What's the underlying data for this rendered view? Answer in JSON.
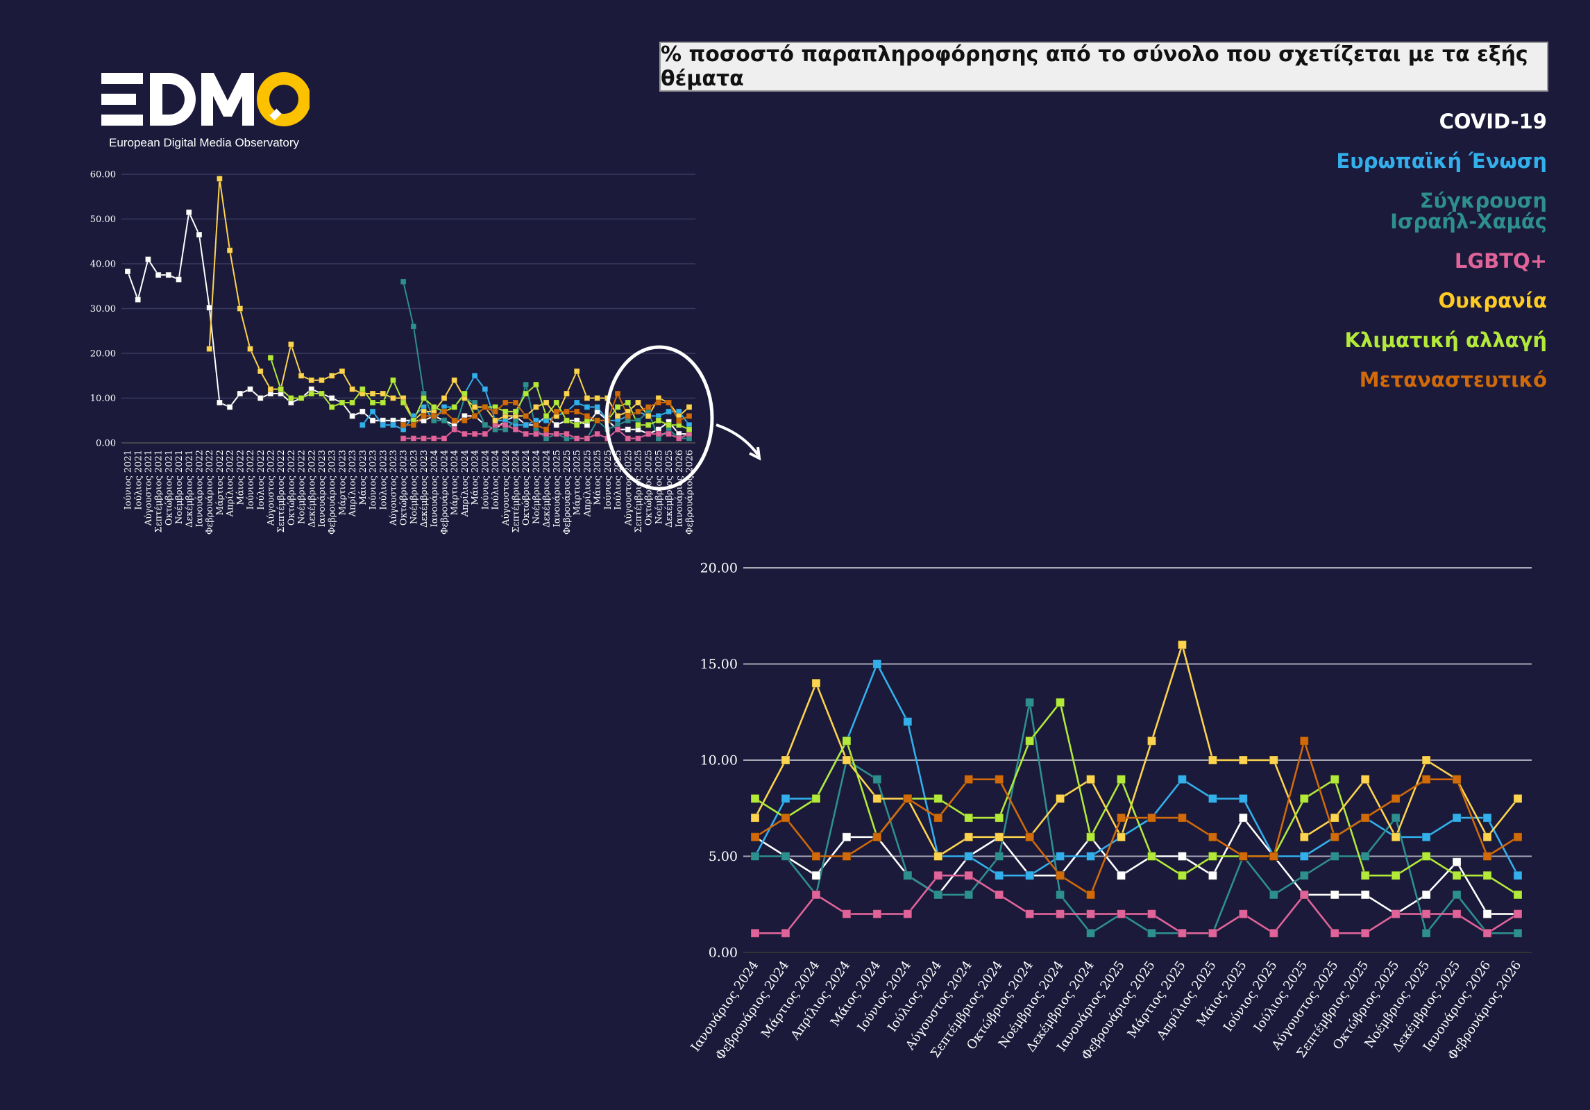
{
  "title": "% ποσοστό παραπληροφόρησης από το σύνολο που σχετίζεται με τα εξής θέματα",
  "logo": {
    "text": "EDMO",
    "subtitle": "European Digital Media Observatory"
  },
  "legend": [
    {
      "label": "COVID-19",
      "color": "#ffffff"
    },
    {
      "label": "Ευρωπαϊκή Ένωση",
      "color": "#33b0ec"
    },
    {
      "label": "Σύγκρουση Ισραήλ-Χαμάς",
      "color": "#2e8f8f"
    },
    {
      "label": "LGBTQ+",
      "color": "#e0649a"
    },
    {
      "label": "Ουκρανία",
      "color": "#fdcb22"
    },
    {
      "label": "Κλιματική αλλαγή",
      "color": "#b3ea3a"
    },
    {
      "label": "Μεταναστευτικό",
      "color": "#d06a0a"
    }
  ],
  "chart_data": [
    {
      "type": "line",
      "ylim": [
        0,
        60
      ],
      "yticks": [
        "0.00",
        "10.00",
        "20.00",
        "30.00",
        "40.00",
        "50.00",
        "60.00"
      ],
      "grid": true,
      "categories": [
        "Ιούνιος 2021",
        "Ιούλιος 2021",
        "Αύγουστος 2021",
        "Σεπτέμβριος 2021",
        "Οκτώβριος 2021",
        "Νοέμβριος 2021",
        "Δεκέμβριος 2021",
        "Ιανουάριος 2022",
        "Φεβρουάριος 2022",
        "Μάρτιος 2022",
        "Απρίλιος 2022",
        "Μάιος 2022",
        "Ιούνιος 2022",
        "Ιούλιος 2022",
        "Αύγουστος 2022",
        "Σεπτέμβριος 2022",
        "Οκτώβριος 2022",
        "Νοέμβριος 2022",
        "Δεκέμβριος 2022",
        "Ιανουάριος 2023",
        "Φεβρουάριος 2023",
        "Μάρτιος 2023",
        "Απρίλιος 2023",
        "Μάιος 2023",
        "Ιούνιος 2023",
        "Ιούλιος 2023",
        "Αύγουστος 2023",
        "Οκτώβριος 2023",
        "Νοέμβριος 2023",
        "Δεκέμβριος 2023",
        "Ιανουάριος 2024",
        "Φεβρουάριος 2024",
        "Μάρτιος 2024",
        "Απρίλιος 2024",
        "Μάιος 2024",
        "Ιούνιος 2024",
        "Ιούλιος 2024",
        "Αύγουστος 2024",
        "Σεπτέμβριος 2024",
        "Οκτώβριος 2024",
        "Νοέμβριος 2024",
        "Δεκέμβριος 2024",
        "Ιανουάριος 2025",
        "Φεβρουάριος 2025",
        "Μάρτιος 2025",
        "Απρίλιος 2025",
        "Μάιος 2025",
        "Ιούνιος 2025",
        "Ιούλιος 2025",
        "Αύγουστος 2025",
        "Σεπτέμβριος 2025",
        "Οκτώβριος 2025",
        "Νοέμβριος 2025",
        "Δεκέμβριος 2025",
        "Ιανουάριος 2026",
        "Φεβρουάριος 2026"
      ],
      "series": [
        {
          "name": "COVID-19",
          "color": "#ffffff",
          "values": [
            38.3,
            32,
            41,
            37.5,
            37.5,
            36.5,
            51.5,
            46.5,
            30.2,
            9,
            8,
            11,
            12,
            10,
            11,
            11,
            9,
            10,
            12,
            11,
            10,
            9,
            6,
            7,
            5,
            5,
            5,
            5,
            5,
            5,
            6,
            5,
            4,
            6,
            6,
            4,
            3,
            5,
            6,
            4,
            4,
            6,
            4,
            5,
            5,
            4,
            7,
            5,
            3,
            3,
            3,
            2,
            3,
            4.7,
            2,
            2
          ]
        },
        {
          "name": "Ευρωπαϊκή Ένωση",
          "color": "#33b0ec",
          "values": [
            null,
            null,
            null,
            null,
            null,
            null,
            null,
            null,
            null,
            null,
            null,
            null,
            null,
            null,
            null,
            null,
            null,
            null,
            null,
            null,
            null,
            null,
            null,
            4,
            7,
            4,
            4,
            3,
            6,
            8,
            5,
            8,
            8,
            11,
            15,
            12,
            5,
            5,
            4,
            4,
            5,
            5,
            6,
            7,
            9,
            8,
            8,
            5,
            5,
            6,
            7,
            6,
            6,
            7,
            7,
            4
          ]
        },
        {
          "name": "Σύγκρουση Ισραήλ-Χαμάς",
          "color": "#2e8f8f",
          "values": [
            null,
            null,
            null,
            null,
            null,
            null,
            null,
            null,
            null,
            null,
            null,
            null,
            null,
            null,
            null,
            null,
            null,
            null,
            null,
            null,
            null,
            null,
            null,
            null,
            null,
            null,
            null,
            36,
            26,
            11,
            5,
            5,
            3,
            10,
            9,
            4,
            3,
            3,
            5,
            13,
            3,
            1,
            2,
            1,
            1,
            1,
            5,
            3,
            4,
            5,
            5,
            7,
            1,
            3,
            1,
            1
          ]
        },
        {
          "name": "LGBTQ+",
          "color": "#e0649a",
          "values": [
            null,
            null,
            null,
            null,
            null,
            null,
            null,
            null,
            null,
            null,
            null,
            null,
            null,
            null,
            null,
            null,
            null,
            null,
            null,
            null,
            null,
            null,
            null,
            null,
            null,
            null,
            null,
            1,
            1,
            1,
            1,
            1,
            3,
            2,
            2,
            2,
            4,
            4,
            3,
            2,
            2,
            2,
            2,
            2,
            1,
            1,
            2,
            1,
            3,
            1,
            1,
            2,
            2,
            2,
            1,
            2
          ]
        },
        {
          "name": "Ουκρανία",
          "color": "#fdd44f",
          "values": [
            null,
            null,
            null,
            null,
            null,
            null,
            null,
            null,
            21,
            59,
            43,
            30,
            21,
            16,
            12,
            12,
            22,
            15,
            14,
            14,
            15,
            16,
            12,
            11,
            11,
            11,
            10,
            10,
            5,
            7,
            7,
            10,
            14,
            10,
            8,
            8,
            5,
            6,
            6,
            6,
            8,
            9,
            6,
            11,
            16,
            10,
            10,
            10,
            6,
            7,
            9,
            6,
            10,
            9,
            6,
            8
          ]
        },
        {
          "name": "Κλιματική αλλαγή",
          "color": "#b3ea3a",
          "values": [
            null,
            null,
            null,
            null,
            null,
            null,
            null,
            null,
            null,
            null,
            null,
            null,
            null,
            null,
            19,
            12,
            10,
            10,
            11,
            11,
            8,
            9,
            9,
            12,
            9,
            9,
            14,
            9,
            5,
            10,
            8,
            7,
            8,
            11,
            6,
            8,
            8,
            7,
            7,
            11,
            13,
            6,
            9,
            5,
            4,
            5,
            5,
            5,
            8,
            9,
            4,
            4,
            5,
            4,
            4,
            3
          ]
        },
        {
          "name": "Μεταναστευτικό",
          "color": "#d06a0a",
          "values": [
            null,
            null,
            null,
            null,
            null,
            null,
            null,
            null,
            null,
            null,
            null,
            null,
            null,
            null,
            null,
            null,
            null,
            null,
            null,
            null,
            null,
            null,
            null,
            null,
            null,
            null,
            null,
            4,
            4,
            6,
            6,
            7,
            5,
            5,
            6,
            8,
            7,
            9,
            9,
            6,
            4,
            3,
            7,
            7,
            7,
            6,
            5,
            5,
            11,
            6,
            7,
            8,
            9,
            9,
            5,
            6
          ]
        }
      ]
    },
    {
      "type": "line",
      "ylim": [
        0,
        20
      ],
      "yticks": [
        "0.00",
        "5.00",
        "10.00",
        "15.00",
        "20.00"
      ],
      "grid": true,
      "categories": [
        "Ιανουάριος 2024",
        "Φεβρουάριος 2024",
        "Μάρτιος 2024",
        "Απρίλιος 2024",
        "Μάιος 2024",
        "Ιούνιος 2024",
        "Ιούλιος 2024",
        "Αύγουστος 2024",
        "Σεπτέμβριος 2024",
        "Οκτώβριος 2024",
        "Νοέμβριος 2024",
        "Δεκέμβριος 2024",
        "Ιανουάριος 2025",
        "Φεβρουάριος 2025",
        "Μάρτιος 2025",
        "Απρίλιος 2025",
        "Μάιος 2025",
        "Ιούνιος 2025",
        "Ιούλιος 2025",
        "Αύγουστος 2025",
        "Σεπτέμβριος 2025",
        "Οκτώβριος 2025",
        "Νοέμβριος 2025",
        "Δεκέμβριος 2025",
        "Ιανουάριος 2026",
        "Φεβρουάριος 2026"
      ],
      "series": [
        {
          "name": "COVID-19",
          "color": "#ffffff",
          "values": [
            6,
            5,
            4,
            6,
            6,
            4,
            3,
            5,
            6,
            4,
            4,
            6,
            4,
            5,
            5,
            4,
            7,
            5,
            3,
            3,
            3,
            2,
            3,
            4.7,
            2,
            2
          ]
        },
        {
          "name": "Ευρωπαϊκή Ένωση",
          "color": "#33b0ec",
          "values": [
            5,
            8,
            8,
            11,
            15,
            12,
            5,
            5,
            4,
            4,
            5,
            5,
            6,
            7,
            9,
            8,
            8,
            5,
            5,
            6,
            7,
            6,
            6,
            7,
            7,
            4
          ]
        },
        {
          "name": "Σύγκρουση Ισραήλ-Χαμάς",
          "color": "#2e8f8f",
          "values": [
            5,
            5,
            3,
            10,
            9,
            4,
            3,
            3,
            5,
            13,
            3,
            1,
            2,
            1,
            1,
            1,
            5,
            3,
            4,
            5,
            5,
            7,
            1,
            3,
            1,
            1
          ]
        },
        {
          "name": "LGBTQ+",
          "color": "#e0649a",
          "values": [
            1,
            1,
            3,
            2,
            2,
            2,
            4,
            4,
            3,
            2,
            2,
            2,
            2,
            2,
            1,
            1,
            2,
            1,
            3,
            1,
            1,
            2,
            2,
            2,
            1,
            2
          ]
        },
        {
          "name": "Ουκρανία",
          "color": "#fdd44f",
          "values": [
            7,
            10,
            14,
            10,
            8,
            8,
            5,
            6,
            6,
            6,
            8,
            9,
            6,
            11,
            16,
            10,
            10,
            10,
            6,
            7,
            9,
            6,
            10,
            9,
            6,
            8
          ]
        },
        {
          "name": "Κλιματική αλλαγή",
          "color": "#b3ea3a",
          "values": [
            8,
            7,
            8,
            11,
            6,
            8,
            8,
            7,
            7,
            11,
            13,
            6,
            9,
            5,
            4,
            5,
            5,
            5,
            8,
            9,
            4,
            4,
            5,
            4,
            4,
            3
          ]
        },
        {
          "name": "Μεταναστευτικό",
          "color": "#d06a0a",
          "values": [
            6,
            7,
            5,
            5,
            6,
            8,
            7,
            9,
            9,
            6,
            4,
            3,
            7,
            7,
            7,
            6,
            5,
            5,
            11,
            6,
            7,
            8,
            9,
            9,
            5,
            6
          ]
        }
      ]
    }
  ]
}
